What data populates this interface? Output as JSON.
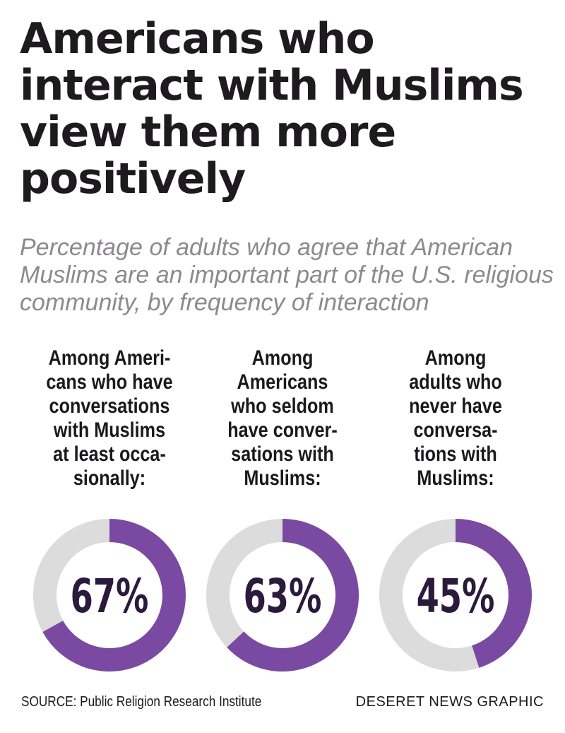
{
  "title": "Americans who interact with Muslims view them more positively",
  "subtitle": "Percentage of adults who agree that American Muslims are an important part of the U.S. religious community, by frequency of interaction",
  "chart_data": {
    "type": "pie",
    "donut": true,
    "colors": {
      "value": "#7a4aa2",
      "remainder": "#dcdcdc",
      "text": "#2b1a3c"
    },
    "items": [
      {
        "label": "Among Americans who have conversations with Muslims at least occasionally:",
        "value": 67,
        "display": "67%"
      },
      {
        "label": "Among Americans who seldom have conversations with Muslims:",
        "value": 63,
        "display": "63%"
      },
      {
        "label": "Among adults who never have conversations with Muslims:",
        "value": 45,
        "display": "45%"
      }
    ]
  },
  "footer": {
    "source": "SOURCE: Public Religion Research Institute",
    "credit": "DESERET NEWS GRAPHIC"
  }
}
